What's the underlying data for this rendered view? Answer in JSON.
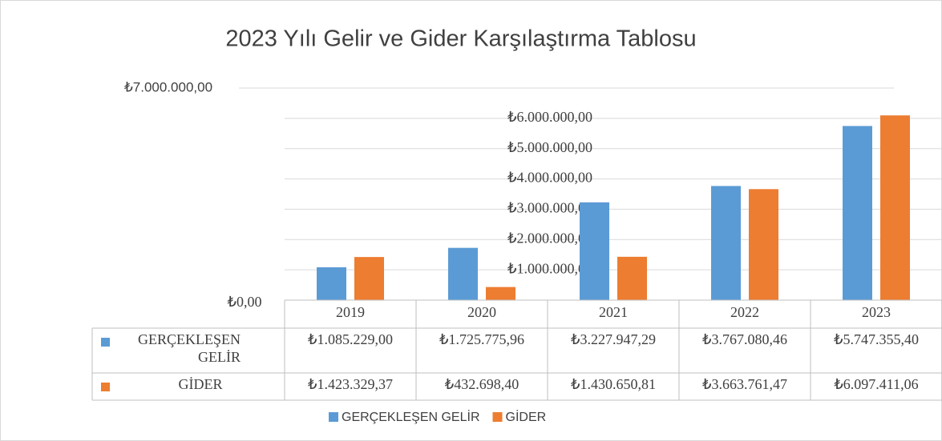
{
  "chart_data": {
    "type": "bar",
    "title": "2023 Yılı Gelir ve Gider Karşılaştırma Tablosu",
    "categories": [
      "2019",
      "2020",
      "2021",
      "2022",
      "2023"
    ],
    "series": [
      {
        "name": "GERÇEKLEŞEN GELİR",
        "color": "#5b9bd5",
        "values": [
          1085229.0,
          1725775.96,
          3227947.29,
          3767080.46,
          5747355.4
        ],
        "value_labels": [
          "₺1.085.229,00",
          "₺1.725.775,96",
          "₺3.227.947,29",
          "₺3.767.080,46",
          "₺5.747.355,40"
        ]
      },
      {
        "name": "GİDER",
        "color": "#ed7d31",
        "values": [
          1423329.37,
          432698.4,
          1430650.81,
          3663761.47,
          6097411.06
        ],
        "value_labels": [
          "₺1.423.329,37",
          "₺432.698,40",
          "₺1.430.650,81",
          "₺3.663.761,47",
          "₺6.097.411,06"
        ]
      }
    ],
    "ylim": [
      0,
      7000000
    ],
    "yticks": [
      {
        "value": 0,
        "label": "₺0,00"
      },
      {
        "value": 1000000,
        "label": "₺1.000.000,00"
      },
      {
        "value": 2000000,
        "label": "₺2.000.000,00"
      },
      {
        "value": 3000000,
        "label": "₺3.000.000,00"
      },
      {
        "value": 4000000,
        "label": "₺4.000.000,00"
      },
      {
        "value": 5000000,
        "label": "₺5.000.000,00"
      },
      {
        "value": 6000000,
        "label": "₺6.000.000,00"
      },
      {
        "value": 7000000,
        "label": "₺7.000.000,00"
      }
    ],
    "grid": true,
    "legend": "bottom"
  }
}
